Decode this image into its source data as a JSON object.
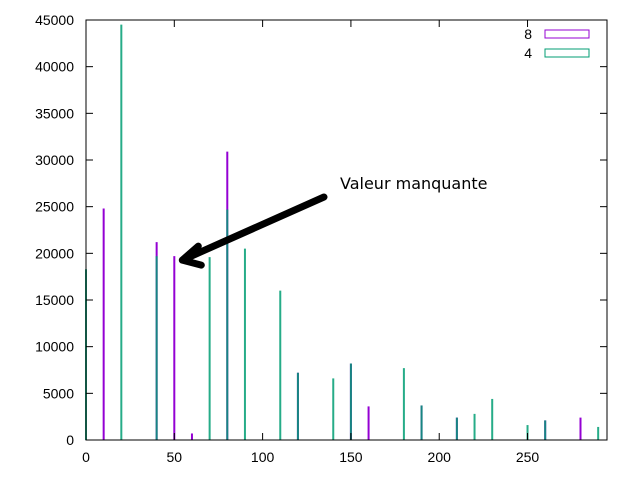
{
  "chart_data": {
    "type": "bar",
    "title": "",
    "xlabel": "",
    "ylabel": "",
    "xlim": [
      0,
      295
    ],
    "ylim": [
      0,
      45000
    ],
    "xticks": [
      0,
      50,
      100,
      150,
      200,
      250
    ],
    "yticks": [
      0,
      5000,
      10000,
      15000,
      20000,
      25000,
      30000,
      35000,
      40000,
      45000
    ],
    "grid": false,
    "legend_position": "top-right",
    "series": [
      {
        "name": "8",
        "color": "#9400d3",
        "x": [
          10,
          40,
          50,
          60,
          80,
          120,
          150,
          160,
          190,
          210,
          260,
          280
        ],
        "values": [
          24800,
          21200,
          19700,
          700,
          30900,
          7200,
          8200,
          3600,
          3700,
          2400,
          2100,
          2400
        ]
      },
      {
        "name": "4",
        "color": "#009e73",
        "x": [
          0,
          20,
          40,
          70,
          80,
          90,
          110,
          120,
          140,
          150,
          180,
          190,
          210,
          220,
          230,
          250,
          260,
          290
        ],
        "values": [
          18300,
          44500,
          19700,
          19600,
          24700,
          20500,
          16000,
          7200,
          6600,
          8200,
          7700,
          3700,
          2400,
          2800,
          4400,
          1600,
          2100,
          1400
        ]
      }
    ],
    "annotations": [
      {
        "text": "Valeur manquante",
        "x": 50,
        "y": 19700
      }
    ]
  }
}
